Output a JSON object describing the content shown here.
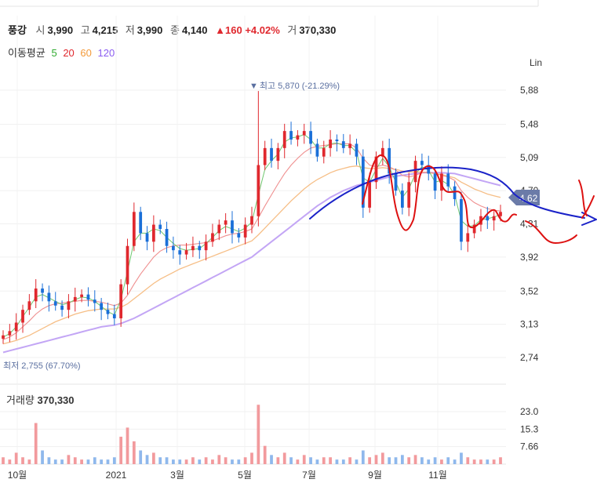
{
  "stock": {
    "name": "풍강",
    "open_label": "시",
    "open": "3,990",
    "high_label": "고",
    "high": "4,215",
    "low_label": "저",
    "low": "3,990",
    "close_label": "종",
    "close": "4,140",
    "change_arrow": "▲",
    "change": "160",
    "change_pct": "+4.02%",
    "volume_label": "거",
    "volume": "370,330"
  },
  "ma_legend": {
    "title": "이동평균",
    "items": [
      {
        "label": "5",
        "color": "#2eaa2e"
      },
      {
        "label": "20",
        "color": "#e0282e"
      },
      {
        "label": "60",
        "color": "#f39a3a"
      },
      {
        "label": "120",
        "color": "#8a5cf0"
      }
    ]
  },
  "volume_panel": {
    "label": "거래량",
    "value": "370,330"
  },
  "axis_corner_label": "Lin",
  "chart_data": {
    "type": "candlestick",
    "price_ticks": [
      "5,88",
      "5,48",
      "5,09",
      "4,70",
      "4,31",
      "3,92",
      "3,52",
      "3,13",
      "2,74"
    ],
    "price_tick_values": [
      5880,
      5480,
      5090,
      4700,
      4310,
      3920,
      3520,
      3130,
      2740
    ],
    "volume_ticks": [
      "23.0",
      "15.3",
      "7.66"
    ],
    "volume_tick_values": [
      23.0,
      15.3,
      7.66
    ],
    "x_labels": [
      "10월",
      "2021",
      "3월",
      "5월",
      "7월",
      "9월",
      "11월"
    ],
    "x_label_dates": [
      "2020-10",
      "2021-01",
      "2021-03",
      "2021-05",
      "2021-07",
      "2021-09",
      "2021-11"
    ],
    "high_annotation": "최고 5,870 (-21.29%)",
    "high_marker": "▼",
    "low_annotation": "최저 2,755 (67.70%)",
    "current_price_tag": "4,62",
    "series_close": [
      3000,
      3050,
      3150,
      3300,
      3400,
      3550,
      3500,
      3400,
      3350,
      3300,
      3400,
      3450,
      3480,
      3420,
      3380,
      3300,
      3250,
      3200,
      3600,
      4050,
      4450,
      4200,
      4100,
      4300,
      4250,
      4050,
      4000,
      3950,
      4000,
      4050,
      4000,
      4100,
      4200,
      4300,
      4350,
      4200,
      4150,
      4300,
      4400,
      5000,
      5200,
      5050,
      5200,
      5400,
      5300,
      5350,
      5400,
      5250,
      5100,
      5200,
      5300,
      5280,
      5200,
      5250,
      5100,
      4500,
      4800,
      5100,
      5200,
      4900,
      4700,
      4500,
      4800,
      5050,
      5000,
      4900,
      4700,
      4900,
      4750,
      4600,
      4100,
      4200,
      4300,
      4400,
      4350,
      4400,
      4450
    ],
    "ma5": [
      2980,
      3020,
      3100,
      3220,
      3330,
      3450,
      3480,
      3440,
      3400,
      3360,
      3380,
      3420,
      3450,
      3440,
      3400,
      3340,
      3280,
      3240,
      3420,
      3750,
      4100,
      4200,
      4200,
      4250,
      4230,
      4150,
      4080,
      4020,
      4000,
      4010,
      4020,
      4080,
      4150,
      4230,
      4280,
      4250,
      4220,
      4260,
      4330,
      4650,
      4950,
      5050,
      5130,
      5270,
      5320,
      5330,
      5360,
      5300,
      5200,
      5200,
      5250,
      5260,
      5230,
      5230,
      5150,
      4850,
      4800,
      4950,
      5080,
      4980,
      4800,
      4620,
      4720,
      4900,
      4980,
      4940,
      4800,
      4820,
      4770,
      4650,
      4350,
      4280,
      4290,
      4360,
      4370,
      4390,
      4420
    ],
    "ma20": [
      2950,
      2980,
      3030,
      3100,
      3170,
      3250,
      3310,
      3350,
      3370,
      3380,
      3390,
      3400,
      3410,
      3410,
      3400,
      3390,
      3370,
      3350,
      3380,
      3470,
      3600,
      3720,
      3820,
      3920,
      3990,
      4030,
      4050,
      4060,
      4060,
      4070,
      4080,
      4090,
      4110,
      4140,
      4170,
      4190,
      4200,
      4220,
      4250,
      4380,
      4520,
      4650,
      4780,
      4900,
      5000,
      5080,
      5150,
      5200,
      5220,
      5230,
      5240,
      5250,
      5250,
      5250,
      5200,
      5080,
      5000,
      4980,
      5000,
      4980,
      4940,
      4880,
      4860,
      4880,
      4910,
      4920,
      4900,
      4880,
      4860,
      4820,
      4700,
      4620,
      4560,
      4520,
      4490,
      4470,
      4460
    ],
    "ma60": [
      2900,
      2920,
      2940,
      2970,
      3000,
      3040,
      3080,
      3120,
      3160,
      3190,
      3220,
      3250,
      3270,
      3290,
      3300,
      3310,
      3310,
      3310,
      3330,
      3370,
      3430,
      3490,
      3550,
      3610,
      3660,
      3700,
      3740,
      3780,
      3810,
      3840,
      3870,
      3900,
      3930,
      3960,
      3990,
      4020,
      4050,
      4080,
      4110,
      4180,
      4260,
      4340,
      4420,
      4500,
      4580,
      4650,
      4720,
      4780,
      4830,
      4870,
      4910,
      4940,
      4960,
      4980,
      4990,
      4970,
      4960,
      4960,
      4970,
      4960,
      4950,
      4930,
      4920,
      4920,
      4920,
      4910,
      4900,
      4890,
      4870,
      4850,
      4800,
      4760,
      4720,
      4690,
      4660,
      4640,
      4620
    ],
    "ma120": [
      2800,
      2820,
      2840,
      2860,
      2880,
      2900,
      2920,
      2940,
      2960,
      2980,
      3000,
      3020,
      3040,
      3060,
      3080,
      3100,
      3110,
      3120,
      3140,
      3170,
      3200,
      3240,
      3280,
      3320,
      3360,
      3400,
      3440,
      3480,
      3520,
      3560,
      3600,
      3640,
      3680,
      3720,
      3760,
      3800,
      3840,
      3880,
      3920,
      3980,
      4040,
      4100,
      4160,
      4220,
      4280,
      4340,
      4400,
      4460,
      4520,
      4570,
      4620,
      4660,
      4700,
      4730,
      4760,
      4780,
      4800,
      4820,
      4840,
      4860,
      4870,
      4880,
      4890,
      4900,
      4910,
      4910,
      4910,
      4910,
      4905,
      4900,
      4880,
      4860,
      4840,
      4820,
      4800,
      4780,
      4760
    ],
    "volume": [
      3,
      2,
      5,
      3,
      2,
      18,
      6,
      3,
      2,
      2,
      4,
      3,
      2,
      2,
      3,
      2,
      2,
      3,
      12,
      16,
      10,
      6,
      4,
      5,
      3,
      3,
      2,
      2,
      2,
      3,
      2,
      3,
      2,
      4,
      3,
      2,
      2,
      3,
      5,
      26,
      8,
      4,
      3,
      5,
      3,
      2,
      4,
      3,
      2,
      3,
      3,
      2,
      2,
      3,
      2,
      6,
      3,
      4,
      5,
      3,
      3,
      4,
      3,
      4,
      3,
      2,
      3,
      2,
      3,
      2,
      5,
      3,
      2,
      2,
      2,
      2,
      3
    ]
  }
}
